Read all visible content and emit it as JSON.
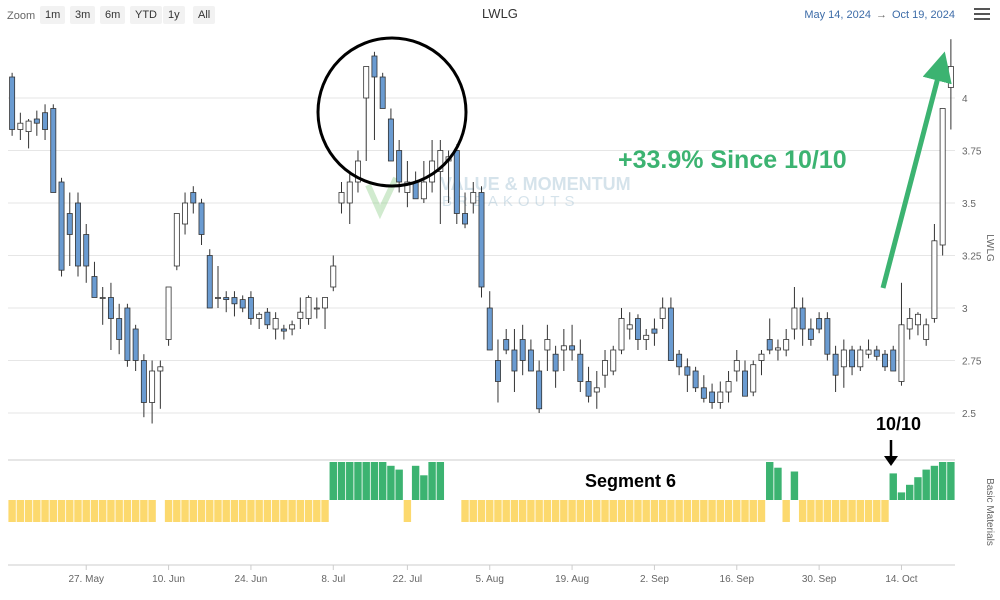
{
  "toolbar": {
    "zoom_label": "Zoom",
    "zoom_buttons": [
      "1m",
      "3m",
      "6m",
      "YTD",
      "1y",
      "All"
    ],
    "title": "LWLG",
    "date_from": "May 14, 2024",
    "date_arrow": "→",
    "date_to": "Oct 19, 2024"
  },
  "annotations": {
    "gain_text": "+33.9% Since 10/10",
    "marker_text": "10/10",
    "segment_text": "Segment 6",
    "watermark_line1": "VALUE & MOMENTUM",
    "watermark_line2": "BREAKOUTS"
  },
  "colors": {
    "down_candle": "#6a9bd1",
    "up_candle": "#ffffff",
    "candle_stroke": "#333333",
    "sector_green": "#3cb371",
    "sector_yellow": "#fcd96e",
    "annotation_green": "#3cb371"
  },
  "chart_data": {
    "type": "candlestick",
    "ylabel": "LWLG",
    "lower_panel_label": "Basic Materials",
    "ylim": [
      2.3,
      4.3
    ],
    "yticks": [
      2.5,
      2.75,
      3,
      3.25,
      3.5,
      3.75,
      4
    ],
    "ytick_labels": [
      "2.5",
      "2.75",
      "3",
      "3.25",
      "3.5",
      "3.75",
      "4"
    ],
    "xtick_labels": [
      "27. May",
      "10. Jun",
      "24. Jun",
      "8. Jul",
      "22. Jul",
      "5. Aug",
      "19. Aug",
      "2. Sep",
      "16. Sep",
      "30. Sep",
      "14. Oct"
    ],
    "xtick_indices": [
      9,
      19,
      29,
      39,
      48,
      58,
      68,
      78,
      88,
      98,
      108
    ],
    "ohlc": [
      [
        4.1,
        4.12,
        3.82,
        3.85
      ],
      [
        3.85,
        3.93,
        3.8,
        3.88
      ],
      [
        3.84,
        3.9,
        3.76,
        3.89
      ],
      [
        3.9,
        3.94,
        3.82,
        3.88
      ],
      [
        3.93,
        3.97,
        3.8,
        3.85
      ],
      [
        3.95,
        3.97,
        3.55,
        3.55
      ],
      [
        3.6,
        3.62,
        3.15,
        3.18
      ],
      [
        3.45,
        3.55,
        3.2,
        3.35
      ],
      [
        3.5,
        3.55,
        3.15,
        3.2
      ],
      [
        3.35,
        3.4,
        3.12,
        3.2
      ],
      [
        3.15,
        3.22,
        3.05,
        3.05
      ],
      [
        3.05,
        3.1,
        2.92,
        3.05
      ],
      [
        3.05,
        3.12,
        2.8,
        2.95
      ],
      [
        2.95,
        3.02,
        2.78,
        2.85
      ],
      [
        3.0,
        3.02,
        2.72,
        2.75
      ],
      [
        2.9,
        2.92,
        2.7,
        2.75
      ],
      [
        2.75,
        2.78,
        2.48,
        2.55
      ],
      [
        2.55,
        2.75,
        2.45,
        2.7
      ],
      [
        2.7,
        2.75,
        2.52,
        2.72
      ],
      [
        2.85,
        3.1,
        2.82,
        3.1
      ],
      [
        3.2,
        3.45,
        3.18,
        3.45
      ],
      [
        3.4,
        3.55,
        3.35,
        3.5
      ],
      [
        3.55,
        3.58,
        3.45,
        3.5
      ],
      [
        3.5,
        3.52,
        3.3,
        3.35
      ],
      [
        3.25,
        3.28,
        3.0,
        3.0
      ],
      [
        3.05,
        3.2,
        3.0,
        3.05
      ],
      [
        3.05,
        3.08,
        2.98,
        3.04
      ],
      [
        3.05,
        3.08,
        2.96,
        3.02
      ],
      [
        3.04,
        3.06,
        2.98,
        3.0
      ],
      [
        3.05,
        3.08,
        2.92,
        2.95
      ],
      [
        2.95,
        2.98,
        2.9,
        2.97
      ],
      [
        2.98,
        3.0,
        2.9,
        2.92
      ],
      [
        2.9,
        2.98,
        2.85,
        2.95
      ],
      [
        2.9,
        2.92,
        2.85,
        2.89
      ],
      [
        2.9,
        2.94,
        2.87,
        2.92
      ],
      [
        2.95,
        3.05,
        2.9,
        2.98
      ],
      [
        2.95,
        3.06,
        2.92,
        3.05
      ],
      [
        3.0,
        3.05,
        2.95,
        3.0
      ],
      [
        3.0,
        3.05,
        2.9,
        3.05
      ],
      [
        3.1,
        3.25,
        3.08,
        3.2
      ],
      [
        3.5,
        3.6,
        3.45,
        3.55
      ],
      [
        3.5,
        3.65,
        3.4,
        3.6
      ],
      [
        3.6,
        3.75,
        3.55,
        3.7
      ],
      [
        4.0,
        4.15,
        3.7,
        4.15
      ],
      [
        4.2,
        4.22,
        3.8,
        4.1
      ],
      [
        4.1,
        4.12,
        3.95,
        3.95
      ],
      [
        3.9,
        3.95,
        3.7,
        3.7
      ],
      [
        3.75,
        3.8,
        3.55,
        3.6
      ],
      [
        3.55,
        3.7,
        3.48,
        3.6
      ],
      [
        3.6,
        3.65,
        3.52,
        3.52
      ],
      [
        3.52,
        3.7,
        3.5,
        3.6
      ],
      [
        3.6,
        3.8,
        3.55,
        3.7
      ],
      [
        3.65,
        3.8,
        3.4,
        3.75
      ],
      [
        3.7,
        3.75,
        3.5,
        3.72
      ],
      [
        3.75,
        3.78,
        3.4,
        3.45
      ],
      [
        3.45,
        3.55,
        3.38,
        3.4
      ],
      [
        3.5,
        3.6,
        3.45,
        3.55
      ],
      [
        3.55,
        3.58,
        3.05,
        3.1
      ],
      [
        3.0,
        3.08,
        2.8,
        2.8
      ],
      [
        2.75,
        2.85,
        2.55,
        2.65
      ],
      [
        2.85,
        2.9,
        2.78,
        2.8
      ],
      [
        2.8,
        2.9,
        2.6,
        2.7
      ],
      [
        2.85,
        2.92,
        2.68,
        2.75
      ],
      [
        2.8,
        2.85,
        2.7,
        2.7
      ],
      [
        2.7,
        2.75,
        2.5,
        2.52
      ],
      [
        2.8,
        2.92,
        2.7,
        2.85
      ],
      [
        2.78,
        2.82,
        2.62,
        2.7
      ],
      [
        2.8,
        2.9,
        2.7,
        2.82
      ],
      [
        2.82,
        2.92,
        2.75,
        2.8
      ],
      [
        2.78,
        2.85,
        2.6,
        2.65
      ],
      [
        2.65,
        2.72,
        2.55,
        2.58
      ],
      [
        2.6,
        2.7,
        2.52,
        2.62
      ],
      [
        2.68,
        2.8,
        2.62,
        2.75
      ],
      [
        2.7,
        2.82,
        2.68,
        2.8
      ],
      [
        2.8,
        3.0,
        2.78,
        2.95
      ],
      [
        2.9,
        2.98,
        2.85,
        2.92
      ],
      [
        2.95,
        2.97,
        2.8,
        2.85
      ],
      [
        2.85,
        2.9,
        2.8,
        2.87
      ],
      [
        2.9,
        2.95,
        2.82,
        2.88
      ],
      [
        2.95,
        3.05,
        2.9,
        3.0
      ],
      [
        3.0,
        3.05,
        2.75,
        2.75
      ],
      [
        2.78,
        2.8,
        2.68,
        2.72
      ],
      [
        2.72,
        2.76,
        2.6,
        2.68
      ],
      [
        2.7,
        2.72,
        2.6,
        2.62
      ],
      [
        2.62,
        2.68,
        2.55,
        2.57
      ],
      [
        2.6,
        2.64,
        2.52,
        2.55
      ],
      [
        2.55,
        2.65,
        2.52,
        2.6
      ],
      [
        2.6,
        2.7,
        2.55,
        2.65
      ],
      [
        2.7,
        2.8,
        2.65,
        2.75
      ],
      [
        2.7,
        2.75,
        2.58,
        2.58
      ],
      [
        2.6,
        2.75,
        2.58,
        2.73
      ],
      [
        2.75,
        2.8,
        2.68,
        2.78
      ],
      [
        2.85,
        2.95,
        2.78,
        2.8
      ],
      [
        2.8,
        2.85,
        2.75,
        2.81
      ],
      [
        2.8,
        2.9,
        2.77,
        2.85
      ],
      [
        2.9,
        3.1,
        2.85,
        3.0
      ],
      [
        3.0,
        3.05,
        2.82,
        2.9
      ],
      [
        2.9,
        2.95,
        2.82,
        2.85
      ],
      [
        2.95,
        2.98,
        2.88,
        2.9
      ],
      [
        2.95,
        2.98,
        2.75,
        2.78
      ],
      [
        2.78,
        2.82,
        2.6,
        2.68
      ],
      [
        2.72,
        2.85,
        2.62,
        2.8
      ],
      [
        2.8,
        2.82,
        2.68,
        2.72
      ],
      [
        2.72,
        2.82,
        2.7,
        2.8
      ],
      [
        2.78,
        2.85,
        2.76,
        2.8
      ],
      [
        2.8,
        2.82,
        2.75,
        2.77
      ],
      [
        2.78,
        2.8,
        2.7,
        2.72
      ],
      [
        2.8,
        2.82,
        2.7,
        2.7
      ],
      [
        2.65,
        3.12,
        2.63,
        2.92
      ],
      [
        2.9,
        3.0,
        2.85,
        2.95
      ],
      [
        2.92,
        2.98,
        2.87,
        2.97
      ],
      [
        2.85,
        2.95,
        2.82,
        2.92
      ],
      [
        2.95,
        3.4,
        2.93,
        3.32
      ],
      [
        3.3,
        3.95,
        3.25,
        3.95
      ],
      [
        4.05,
        4.28,
        3.85,
        4.15
      ]
    ],
    "sector_regime": [
      "y",
      "y",
      "y",
      "y",
      "y",
      "y",
      "y",
      "y",
      "y",
      "y",
      "y",
      "y",
      "y",
      "y",
      "y",
      "y",
      "y",
      "y",
      "gap",
      "y",
      "y",
      "y",
      "y",
      "y",
      "y",
      "y",
      "y",
      "y",
      "y",
      "y",
      "y",
      "y",
      "y",
      "y",
      "y",
      "y",
      "y",
      "y",
      "y",
      "g",
      "g",
      "g",
      "g",
      "g",
      "g",
      "g",
      "g",
      "g",
      "y",
      "g",
      "g",
      "g",
      "g",
      "gap",
      "gap",
      "y",
      "y",
      "y",
      "y",
      "y",
      "y",
      "y",
      "y",
      "y",
      "y",
      "y",
      "y",
      "y",
      "y",
      "y",
      "y",
      "y",
      "y",
      "y",
      "y",
      "y",
      "y",
      "y",
      "y",
      "y",
      "y",
      "y",
      "y",
      "y",
      "y",
      "y",
      "y",
      "y",
      "y",
      "y",
      "y",
      "y",
      "g",
      "g",
      "y",
      "g",
      "y",
      "y",
      "y",
      "y",
      "y",
      "y",
      "y",
      "y",
      "y",
      "y",
      "y",
      "g",
      "g",
      "g",
      "g",
      "g",
      "g",
      "g",
      "g"
    ],
    "sector_heights": [
      0,
      0,
      0,
      0,
      0,
      0,
      0,
      0,
      0,
      0,
      0,
      0,
      0,
      0,
      0,
      0,
      0,
      0,
      0,
      0,
      0,
      0,
      0,
      0,
      0,
      0,
      0,
      0,
      0,
      0,
      0,
      0,
      0,
      0,
      0,
      0,
      0,
      0,
      0,
      1.0,
      1.0,
      1.0,
      1.0,
      1.0,
      1.0,
      1.0,
      0.9,
      0.8,
      0,
      0.9,
      0.65,
      1.0,
      1.0,
      0,
      0,
      0,
      0,
      0,
      0,
      0,
      0,
      0,
      0,
      0,
      0,
      0,
      0,
      0,
      0,
      0,
      0,
      0,
      0,
      0,
      0,
      0,
      0,
      0,
      0,
      0,
      0,
      0,
      0,
      0,
      0,
      0,
      0,
      0,
      0,
      0,
      0,
      0,
      1.0,
      0.85,
      0,
      0.75,
      0,
      0,
      0,
      0,
      0,
      0,
      0,
      0,
      0,
      0,
      0,
      0.7,
      0.2,
      0.4,
      0.6,
      0.8,
      0.9,
      1.0,
      1.0
    ]
  }
}
